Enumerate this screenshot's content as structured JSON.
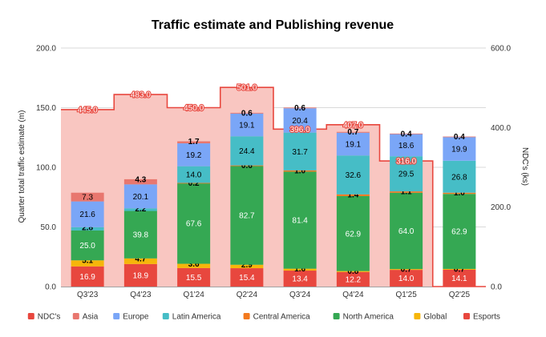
{
  "chart_data": {
    "type": "bar",
    "title": "Traffic estimate and Publishing revenue",
    "ylabel": "Quarter total traffic estimate (m)",
    "y2label": "NDC's (ks)",
    "ylim": [
      0,
      200
    ],
    "y2lim": [
      0,
      600
    ],
    "yticks": [
      "0.0",
      "50.0",
      "100.0",
      "150.0",
      "200.0"
    ],
    "y2ticks": [
      "0.0",
      "200.0",
      "400.0",
      "600.0"
    ],
    "categories": [
      "Q3'23",
      "Q4'23",
      "Q1'24",
      "Q2'24",
      "Q3'24",
      "Q4'24",
      "Q1'25",
      "Q2'25"
    ],
    "ndc": {
      "name": "NDC's",
      "type": "stepped-area",
      "values": [
        445.0,
        483.0,
        450.0,
        501.0,
        396.0,
        407.0,
        316.0,
        0
      ],
      "labels": [
        "445.0",
        "483.0",
        "450.0",
        "501.0",
        "396.0",
        "407.0",
        "316.0",
        ""
      ],
      "color": "#e8473e",
      "fill": "#f9c6c1"
    },
    "series": [
      {
        "name": "Esports",
        "color": "#e8473e",
        "text_color": "#ffffff",
        "values": [
          16.9,
          18.9,
          15.5,
          15.4,
          13.4,
          12.2,
          14.0,
          14.1
        ],
        "labels": [
          "16.9",
          "18.9",
          "15.5",
          "15.4",
          "13.4",
          "12.2",
          "14.0",
          "14.1"
        ]
      },
      {
        "name": "Global",
        "color": "#f6b60a",
        "text_color": "#000000",
        "values": [
          5.1,
          4.7,
          3.6,
          2.9,
          1.6,
          0.8,
          0.7,
          0.7
        ],
        "labels": [
          "5.1",
          "4.7",
          "3.6",
          "2.9",
          "1.6",
          "0.8",
          "0.7",
          "0.7"
        ]
      },
      {
        "name": "North America",
        "color": "#35a853",
        "text_color": "#ffffff",
        "values": [
          25.0,
          39.8,
          67.6,
          82.7,
          81.4,
          62.9,
          64.0,
          62.9
        ],
        "labels": [
          "25.0",
          "39.8",
          "67.6",
          "82.7",
          "81.4",
          "62.9",
          "64.0",
          "62.9"
        ]
      },
      {
        "name": "Central America",
        "color": "#f37a1f",
        "text_color": "#000000",
        "values": [
          0.0,
          0.0,
          0.2,
          0.6,
          1.0,
          1.4,
          1.1,
          1.0
        ],
        "labels": [
          "",
          "",
          "0.2",
          "0.6",
          "1.0",
          "1.4",
          "1.1",
          "1.0"
        ]
      },
      {
        "name": "Latin America",
        "color": "#46bdc6",
        "text_color": "#000000",
        "values": [
          2.8,
          2.2,
          14.0,
          24.4,
          31.7,
          32.6,
          29.5,
          26.8
        ],
        "labels": [
          "2.8",
          "2.2",
          "14.0",
          "24.4",
          "31.7",
          "32.6",
          "29.5",
          "26.8"
        ]
      },
      {
        "name": "Europe",
        "color": "#7aa6f7",
        "text_color": "#000000",
        "values": [
          21.6,
          20.1,
          19.2,
          19.1,
          20.4,
          19.1,
          18.6,
          19.9
        ],
        "labels": [
          "21.6",
          "20.1",
          "19.2",
          "19.1",
          "20.4",
          "19.1",
          "18.6",
          "19.9"
        ]
      },
      {
        "name": "Asia",
        "color": "#e8776f",
        "text_color": "#000000",
        "values": [
          7.3,
          4.3,
          1.7,
          0.6,
          0.6,
          0.7,
          0.4,
          0.4
        ],
        "labels": [
          "7.3",
          "4.3",
          "1.7",
          "0.6",
          "0.6",
          "0.7",
          "0.4",
          "0.4"
        ]
      }
    ],
    "legend": {
      "placement": "bottom",
      "entries": [
        {
          "name": "NDC's",
          "color": "#e8473e"
        },
        {
          "name": "Asia",
          "color": "#e8776f"
        },
        {
          "name": "Europe",
          "color": "#7aa6f7"
        },
        {
          "name": "Latin America",
          "color": "#46bdc6"
        },
        {
          "name": "Central America",
          "color": "#f37a1f"
        },
        {
          "name": "North America",
          "color": "#35a853"
        },
        {
          "name": "Global",
          "color": "#f6b60a"
        },
        {
          "name": "Esports",
          "color": "#e8473e"
        }
      ]
    },
    "grid": true
  }
}
